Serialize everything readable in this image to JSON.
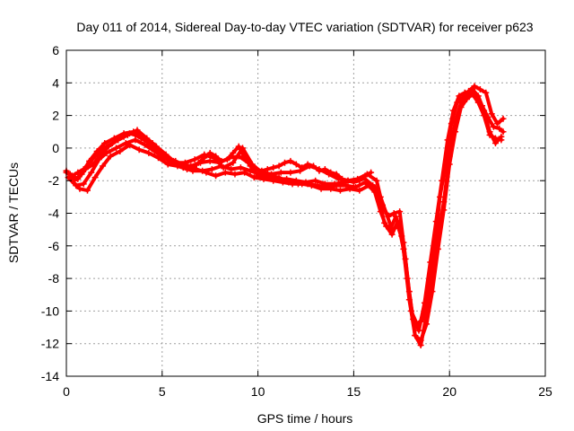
{
  "chart_data": {
    "type": "scatter",
    "title": "Day 011 of 2014, Sidereal Day-to-day VTEC variation (SDTVAR) for receiver p623",
    "xlabel": "GPS time / hours",
    "ylabel": "SDTVAR / TECUs",
    "xlim": [
      0,
      25
    ],
    "ylim": [
      -14,
      6
    ],
    "xticks": [
      0,
      5,
      10,
      15,
      20,
      25
    ],
    "yticks": [
      -14,
      -12,
      -10,
      -8,
      -6,
      -4,
      -2,
      0,
      2,
      4,
      6
    ],
    "grid": true,
    "marker": "+",
    "color": "#ff0000",
    "series": [
      {
        "name": "track-1",
        "x": [
          0.0,
          0.4,
          0.8,
          1.2,
          1.6,
          2.0,
          2.5,
          3.0,
          3.5,
          4.0,
          4.5,
          5.0,
          5.5,
          6.0,
          6.5,
          7.0,
          7.5,
          8.0,
          8.5,
          9.0,
          9.5,
          10.0,
          10.5,
          11.0,
          11.5,
          12.0,
          12.5,
          13.0,
          13.5,
          14.0,
          14.5,
          15.0,
          15.5,
          16.0,
          16.3,
          16.6,
          16.9,
          17.2,
          17.5,
          17.8,
          18.1,
          18.4,
          18.7,
          19.0,
          19.3,
          19.6,
          19.9,
          20.2,
          20.5,
          20.8,
          21.1,
          21.4,
          21.7,
          22.0,
          22.3,
          22.6,
          22.8
        ],
        "y": [
          -1.4,
          -2.0,
          -1.6,
          -0.8,
          -0.2,
          0.3,
          0.6,
          0.9,
          1.0,
          0.7,
          0.3,
          -0.5,
          -0.9,
          -1.0,
          -1.1,
          -0.9,
          -0.8,
          -0.9,
          -0.6,
          -0.5,
          -0.9,
          -1.7,
          -1.8,
          -1.9,
          -1.9,
          -2.0,
          -2.1,
          -2.0,
          -2.2,
          -2.2,
          -2.1,
          -2.0,
          -1.8,
          -2.3,
          -3.0,
          -4.6,
          -5.0,
          -4.2,
          -5.4,
          -8.0,
          -10.5,
          -11.2,
          -9.5,
          -7.0,
          -4.5,
          -2.0,
          0.5,
          2.3,
          3.2,
          3.4,
          3.3,
          3.1,
          2.6,
          1.9,
          1.3,
          1.2,
          1.0
        ]
      },
      {
        "name": "track-2",
        "x": [
          0.1,
          0.5,
          0.9,
          1.3,
          1.7,
          2.1,
          2.6,
          3.1,
          3.6,
          4.1,
          4.6,
          5.1,
          5.6,
          6.1,
          6.6,
          7.1,
          7.6,
          8.1,
          8.6,
          9.1,
          9.6,
          10.1,
          10.6,
          11.1,
          11.6,
          12.1,
          12.6,
          13.1,
          13.6,
          14.1,
          14.6,
          15.1,
          15.6,
          16.1,
          16.4,
          16.7,
          17.0,
          17.3,
          17.6,
          17.9,
          18.2,
          18.5,
          18.8,
          19.1,
          19.4,
          19.7,
          20.0,
          20.3,
          20.6,
          20.9,
          21.2,
          21.5,
          21.8,
          22.1,
          22.4,
          22.7
        ],
        "y": [
          -1.8,
          -2.3,
          -2.2,
          -1.5,
          -0.7,
          -0.3,
          0.0,
          0.3,
          0.5,
          0.2,
          -0.2,
          -0.6,
          -0.8,
          -1.2,
          -1.4,
          -1.4,
          -1.3,
          -1.1,
          -1.3,
          -1.2,
          -1.4,
          -1.6,
          -1.7,
          -1.8,
          -2.1,
          -2.2,
          -2.2,
          -2.3,
          -2.4,
          -2.3,
          -2.3,
          -2.4,
          -2.1,
          -2.7,
          -3.9,
          -4.8,
          -5.3,
          -4.5,
          -6.2,
          -9.3,
          -11.5,
          -12.1,
          -10.2,
          -8.1,
          -5.5,
          -3.3,
          -0.5,
          1.6,
          2.8,
          3.2,
          3.6,
          3.2,
          2.3,
          1.0,
          0.3,
          0.7
        ]
      },
      {
        "name": "track-3",
        "x": [
          0.2,
          0.6,
          1.0,
          1.4,
          1.8,
          2.2,
          2.7,
          3.2,
          3.7,
          4.2,
          4.7,
          5.2,
          5.7,
          6.2,
          6.7,
          7.2,
          7.7,
          8.2,
          8.7,
          9.2,
          9.7,
          10.2,
          10.7,
          11.2,
          11.7,
          12.2,
          12.7,
          13.2,
          13.7,
          14.2,
          14.7,
          15.2,
          15.7,
          16.2,
          16.5,
          16.8,
          17.1,
          17.4,
          17.7,
          18.0,
          18.3,
          18.6,
          18.9,
          19.2,
          19.5,
          19.8,
          20.1,
          20.4,
          20.7,
          21.0,
          21.3,
          21.6,
          21.9,
          22.2,
          22.5,
          22.8
        ],
        "y": [
          -1.6,
          -1.9,
          -1.3,
          -1.0,
          -0.4,
          0.1,
          0.5,
          0.8,
          1.1,
          0.6,
          0.1,
          -0.4,
          -0.9,
          -0.9,
          -0.7,
          -0.4,
          -0.6,
          -1.2,
          -0.9,
          0.0,
          -1.0,
          -1.5,
          -1.6,
          -1.5,
          -1.5,
          -1.4,
          -1.1,
          -1.3,
          -1.6,
          -1.9,
          -2.0,
          -1.9,
          -1.6,
          -2.0,
          -3.5,
          -4.2,
          -4.0,
          -3.9,
          -6.8,
          -10.0,
          -10.8,
          -10.5,
          -9.0,
          -6.5,
          -3.0,
          -1.0,
          1.5,
          2.8,
          3.1,
          3.5,
          3.8,
          3.6,
          3.4,
          2.1,
          1.5,
          1.8
        ]
      },
      {
        "name": "track-4",
        "x": [
          0.3,
          0.7,
          1.1,
          1.5,
          1.9,
          2.3,
          2.8,
          3.3,
          3.8,
          4.3,
          4.8,
          5.3,
          5.8,
          6.3,
          6.8,
          7.3,
          7.8,
          8.3,
          8.8,
          9.3,
          9.8,
          10.3,
          10.8,
          11.3,
          11.8,
          12.3,
          12.8,
          13.3,
          13.8,
          14.3,
          14.8,
          15.3,
          15.8,
          16.1,
          16.4,
          16.7,
          17.0,
          17.3,
          17.6,
          17.9,
          18.2,
          18.5,
          18.8,
          19.1,
          19.4,
          19.7,
          20.0,
          20.3,
          20.6,
          20.9,
          21.2,
          21.5,
          21.8,
          22.1,
          22.4,
          22.7
        ],
        "y": [
          -2.0,
          -2.5,
          -2.6,
          -1.8,
          -1.1,
          -0.5,
          -0.2,
          0.2,
          -0.1,
          -0.3,
          -0.6,
          -1.0,
          -1.1,
          -1.3,
          -1.3,
          -1.5,
          -1.7,
          -1.5,
          -1.6,
          -1.5,
          -1.8,
          -1.9,
          -2.0,
          -2.1,
          -2.2,
          -2.2,
          -2.3,
          -2.5,
          -2.5,
          -2.6,
          -2.5,
          -2.6,
          -2.3,
          -2.4,
          -3.0,
          -4.0,
          -5.0,
          -4.8,
          -5.8,
          -8.8,
          -11.5,
          -11.8,
          -10.8,
          -8.8,
          -6.2,
          -3.8,
          -1.0,
          1.0,
          2.5,
          3.0,
          3.3,
          2.8,
          2.0,
          0.8,
          0.6,
          0.5
        ]
      },
      {
        "name": "track-5",
        "x": [
          0.0,
          0.3,
          0.6,
          0.9,
          1.2,
          1.5,
          1.8,
          2.1,
          2.4,
          2.7,
          3.0,
          3.3,
          3.6,
          3.9,
          4.2,
          4.5,
          4.8,
          5.1,
          5.4,
          5.7,
          6.0,
          6.3,
          6.6,
          6.9,
          7.2,
          7.5,
          7.8,
          8.1,
          8.4,
          8.7,
          9.0,
          9.3,
          9.6,
          9.9,
          10.2,
          10.5,
          10.8,
          11.1,
          11.4,
          11.7,
          12.0,
          12.3,
          12.6,
          12.9,
          13.2,
          13.5,
          13.8,
          14.1,
          14.4,
          14.7,
          15.0,
          15.3,
          15.6,
          15.9
        ],
        "y": [
          -1.5,
          -1.7,
          -1.5,
          -1.3,
          -0.9,
          -0.5,
          -0.1,
          0.1,
          0.3,
          0.5,
          0.7,
          0.9,
          0.8,
          0.6,
          0.4,
          0.0,
          -0.3,
          -0.5,
          -0.7,
          -0.8,
          -1.0,
          -1.1,
          -1.2,
          -0.9,
          -0.6,
          -0.3,
          -0.5,
          -0.8,
          -0.7,
          -0.3,
          0.1,
          -0.6,
          -1.1,
          -1.3,
          -1.4,
          -1.3,
          -1.2,
          -1.1,
          -0.9,
          -0.8,
          -1.0,
          -1.2,
          -1.0,
          -1.1,
          -1.4,
          -1.3,
          -1.5,
          -1.6,
          -1.9,
          -2.0,
          -2.1,
          -2.0,
          -1.7,
          -1.5
        ]
      }
    ]
  }
}
